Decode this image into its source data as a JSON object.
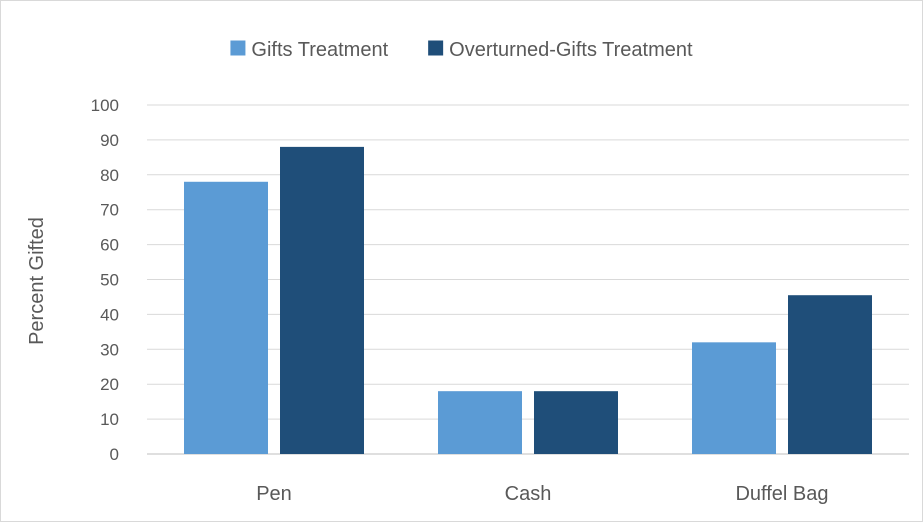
{
  "chart_data": {
    "type": "bar",
    "title": "",
    "xlabel": "",
    "ylabel": "Percent Gifted",
    "categories": [
      "Pen",
      "Cash",
      "Duffel Bag"
    ],
    "series": [
      {
        "name": "Gifts Treatment",
        "values": [
          78,
          18,
          32
        ],
        "color": "#5b9bd5"
      },
      {
        "name": "Overturned-Gifts Treatment",
        "values": [
          88,
          18,
          45.5
        ],
        "color": "#1f4e79"
      }
    ],
    "ylim": [
      0,
      100
    ],
    "yticks": [
      0,
      10,
      20,
      30,
      40,
      50,
      60,
      70,
      80,
      90,
      100
    ],
    "grid": true,
    "legend_position": "top"
  }
}
